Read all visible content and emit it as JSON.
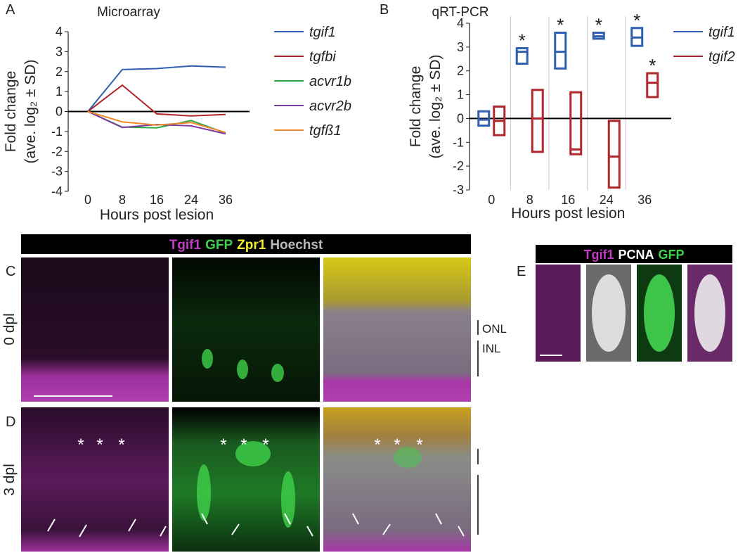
{
  "chart_data": [
    {
      "type": "line",
      "title": "Microarray",
      "ylabel": [
        "Fold change",
        "(ave. log₂ ± SD)"
      ],
      "xlabel": "Hours post lesion",
      "categories": [
        "0",
        "8",
        "16",
        "24",
        "36"
      ],
      "ylim": [
        -4,
        4
      ],
      "yticks": [
        -4,
        -3,
        -2,
        -1,
        0,
        1,
        2,
        3,
        4
      ],
      "grid": false,
      "series": [
        {
          "name": "tgif1",
          "color": "#2f5fae",
          "values": [
            0,
            2.1,
            2.15,
            2.28,
            2.22
          ]
        },
        {
          "name": "tgfbi",
          "color": "#b2262d",
          "values": [
            0,
            1.32,
            -0.12,
            -0.22,
            -0.15
          ]
        },
        {
          "name": "acvr1b",
          "color": "#2ea84a",
          "values": [
            0,
            -0.78,
            -0.82,
            -0.45,
            -1.08
          ]
        },
        {
          "name": "acvr2b",
          "color": "#7a3ea0",
          "values": [
            0,
            -0.8,
            -0.65,
            -0.72,
            -1.12
          ]
        },
        {
          "name": "tgfß1",
          "color": "#ee8a2a",
          "values": [
            0,
            -0.52,
            -0.68,
            -0.55,
            -1.05
          ]
        }
      ]
    },
    {
      "type": "box",
      "title": "qRT-PCR",
      "ylabel": [
        "Fold change",
        "(ave. log₂ ± SD)"
      ],
      "xlabel": "Hours post lesion",
      "categories": [
        "0",
        "8",
        "16",
        "24",
        "36"
      ],
      "ylim": [
        -3,
        4
      ],
      "yticks": [
        -3,
        -2,
        -1,
        0,
        1,
        2,
        3,
        4
      ],
      "grid": false,
      "category_dividers": true,
      "series": [
        {
          "name": "tgif1",
          "color": "#2f5fae",
          "low": [
            -0.3,
            2.3,
            2.1,
            3.35,
            3.05
          ],
          "high": [
            0.3,
            2.95,
            3.6,
            3.6,
            3.8
          ],
          "mid": [
            -0.05,
            2.8,
            2.8,
            3.45,
            3.4
          ],
          "marks": [
            null,
            "*",
            "*",
            "*",
            "*"
          ]
        },
        {
          "name": "tgif2",
          "color": "#b2262d",
          "low": [
            -0.7,
            -1.4,
            -1.5,
            -2.9,
            0.9
          ],
          "high": [
            0.5,
            1.2,
            1.1,
            -0.1,
            1.9
          ],
          "mid": [
            -0.1,
            0,
            -1.3,
            -1.6,
            1.5
          ],
          "marks": [
            null,
            null,
            null,
            null,
            "*"
          ]
        }
      ]
    }
  ],
  "panels": {
    "letters": [
      "A",
      "B",
      "C",
      "D",
      "E"
    ],
    "header": [
      {
        "text": "Tgif1",
        "color": "#c43cc4"
      },
      {
        "text": "GFP",
        "color": "#3fd24a"
      },
      {
        "text": "Zpr1",
        "color": "#f2ee2a"
      },
      {
        "text": "Hoechst",
        "color": "#b8b8b8"
      }
    ],
    "rows": [
      "0 dpl",
      "3 dpl"
    ],
    "layers": [
      "ONL",
      "INL"
    ],
    "asterisks": [
      "*",
      "*",
      "*"
    ],
    "e_header": [
      {
        "text": "Tgif1",
        "color": "#c43cc4"
      },
      {
        "text": "PCNA",
        "color": "#ffffff"
      },
      {
        "text": "GFP",
        "color": "#3fd24a"
      }
    ]
  }
}
